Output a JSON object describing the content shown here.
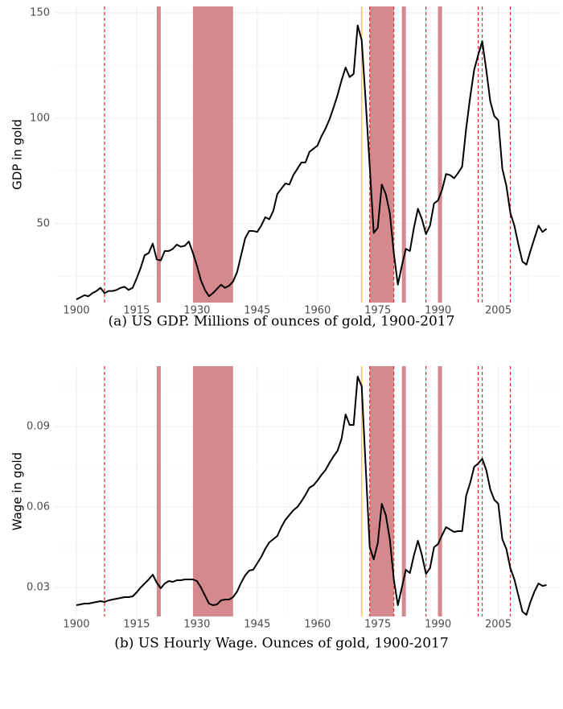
{
  "chart_data": [
    {
      "type": "line",
      "caption": "(a) US GDP. Millions of ounces of gold, 1900-2017",
      "y_label": "GDP in gold",
      "color": "#000000",
      "x": [
        1900,
        1901,
        1902,
        1903,
        1904,
        1905,
        1906,
        1907,
        1908,
        1909,
        1910,
        1911,
        1912,
        1913,
        1914,
        1915,
        1916,
        1917,
        1918,
        1919,
        1920,
        1921,
        1922,
        1923,
        1924,
        1925,
        1926,
        1927,
        1928,
        1929,
        1930,
        1931,
        1932,
        1933,
        1934,
        1935,
        1936,
        1937,
        1938,
        1939,
        1940,
        1941,
        1942,
        1943,
        1944,
        1945,
        1946,
        1947,
        1948,
        1949,
        1950,
        1951,
        1952,
        1953,
        1954,
        1955,
        1956,
        1957,
        1958,
        1959,
        1960,
        1961,
        1962,
        1963,
        1964,
        1965,
        1966,
        1967,
        1968,
        1969,
        1970,
        1971,
        1972,
        1973,
        1974,
        1975,
        1976,
        1977,
        1978,
        1979,
        1980,
        1981,
        1982,
        1983,
        1984,
        1985,
        1986,
        1987,
        1988,
        1989,
        1990,
        1991,
        1992,
        1993,
        1994,
        1995,
        1996,
        1997,
        1998,
        1999,
        2000,
        2001,
        2002,
        2003,
        2004,
        2005,
        2006,
        2007,
        2008,
        2009,
        2010,
        2011,
        2012,
        2013,
        2014,
        2015,
        2016,
        2017
      ],
      "values": [
        14,
        15,
        16,
        15.5,
        17,
        18,
        19.5,
        17,
        18,
        18,
        18.5,
        19.5,
        20,
        18.5,
        19.5,
        24,
        29,
        35,
        36,
        40.5,
        33,
        32.5,
        37,
        37,
        38,
        40,
        39,
        39.5,
        41.5,
        36,
        30,
        23,
        18.5,
        15.5,
        17,
        19,
        21,
        19.5,
        20.5,
        22.5,
        27,
        35,
        43,
        46.5,
        46.5,
        46,
        49,
        53,
        52,
        56,
        64,
        66.5,
        69,
        68.5,
        73,
        76,
        79,
        79,
        84,
        85.5,
        87,
        91.5,
        95,
        99.5,
        105,
        111,
        118,
        124,
        119.5,
        121,
        144,
        137,
        108,
        77,
        45.5,
        48,
        68.5,
        64,
        55,
        36,
        21,
        30,
        38,
        37,
        48,
        57,
        52,
        45,
        49,
        59.5,
        61,
        66,
        73.5,
        73,
        71.5,
        74,
        77,
        95,
        110,
        123,
        130,
        136.5,
        123,
        108,
        101,
        99,
        76,
        68,
        55,
        49,
        40,
        32,
        30.5,
        37,
        43,
        49,
        46,
        47.5
      ],
      "xlim": [
        1894.6,
        2020.5
      ],
      "xticks": [
        1900,
        1915,
        1930,
        1945,
        1960,
        1975,
        1990,
        2005
      ],
      "x_minor_ticks": [
        1907.5,
        1922.5,
        1937.5,
        1952.5,
        1967.5,
        1982.5,
        1997.5,
        2012.5
      ],
      "ylim": [
        12.5,
        153
      ],
      "yticks": [
        50,
        100,
        150
      ],
      "y_minor_ticks": [
        25,
        75,
        125
      ],
      "grid": true,
      "shaded_periods": [
        [
          1920,
          1921
        ],
        [
          1929,
          1939
        ],
        [
          1973,
          1979
        ],
        [
          1981,
          1982
        ],
        [
          1990,
          1991
        ]
      ],
      "shade_color": "#d48a8c",
      "dashed_lines": [
        1907,
        1973,
        1979,
        1987,
        2000,
        2001,
        2008
      ],
      "dashed_color": "#e8262d",
      "highlight_line": 1971,
      "highlight_color": "#f6c84c"
    },
    {
      "type": "line",
      "caption": "(b) US Hourly Wage. Ounces of gold, 1900-2017",
      "y_label": "Wage in gold",
      "color": "#000000",
      "x": [
        1900,
        1901,
        1902,
        1903,
        1904,
        1905,
        1906,
        1907,
        1908,
        1909,
        1910,
        1911,
        1912,
        1913,
        1914,
        1915,
        1916,
        1917,
        1918,
        1919,
        1920,
        1921,
        1922,
        1923,
        1924,
        1925,
        1926,
        1927,
        1928,
        1929,
        1930,
        1931,
        1932,
        1933,
        1934,
        1935,
        1936,
        1937,
        1938,
        1939,
        1940,
        1941,
        1942,
        1943,
        1944,
        1945,
        1946,
        1947,
        1948,
        1949,
        1950,
        1951,
        1952,
        1953,
        1954,
        1955,
        1956,
        1957,
        1958,
        1959,
        1960,
        1961,
        1962,
        1963,
        1964,
        1965,
        1966,
        1967,
        1968,
        1969,
        1970,
        1971,
        1972,
        1973,
        1974,
        1975,
        1976,
        1977,
        1978,
        1979,
        1980,
        1981,
        1982,
        1983,
        1984,
        1985,
        1986,
        1987,
        1988,
        1989,
        1990,
        1991,
        1992,
        1993,
        1994,
        1995,
        1996,
        1997,
        1998,
        1999,
        2000,
        2001,
        2002,
        2003,
        2004,
        2005,
        2006,
        2007,
        2008,
        2009,
        2010,
        2011,
        2012,
        2013,
        2014,
        2015,
        2016,
        2017
      ],
      "values": [
        0.0234,
        0.0237,
        0.024,
        0.024,
        0.0243,
        0.0246,
        0.0249,
        0.0246,
        0.0252,
        0.0255,
        0.0258,
        0.0261,
        0.0264,
        0.0264,
        0.0267,
        0.0282,
        0.03,
        0.0315,
        0.033,
        0.0348,
        0.0318,
        0.0297,
        0.0315,
        0.0324,
        0.0321,
        0.0327,
        0.0327,
        0.033,
        0.033,
        0.033,
        0.0324,
        0.03,
        0.027,
        0.024,
        0.0234,
        0.0237,
        0.0252,
        0.0255,
        0.0255,
        0.0264,
        0.0285,
        0.0318,
        0.0345,
        0.0363,
        0.0366,
        0.039,
        0.0414,
        0.0444,
        0.0468,
        0.048,
        0.0492,
        0.0525,
        0.0552,
        0.057,
        0.0588,
        0.06,
        0.0621,
        0.0645,
        0.0672,
        0.0681,
        0.0699,
        0.072,
        0.0738,
        0.0765,
        0.0789,
        0.081,
        0.0855,
        0.0945,
        0.0906,
        0.0906,
        0.1086,
        0.105,
        0.075,
        0.045,
        0.0405,
        0.0465,
        0.0612,
        0.057,
        0.048,
        0.033,
        0.0234,
        0.03,
        0.0366,
        0.0354,
        0.042,
        0.0474,
        0.042,
        0.0351,
        0.0372,
        0.045,
        0.0462,
        0.0495,
        0.0525,
        0.0516,
        0.0507,
        0.051,
        0.051,
        0.0642,
        0.069,
        0.075,
        0.0762,
        0.078,
        0.0738,
        0.0666,
        0.0627,
        0.0612,
        0.048,
        0.0444,
        0.0372,
        0.033,
        0.027,
        0.021,
        0.0198,
        0.0246,
        0.0285,
        0.0315,
        0.0306,
        0.0309
      ],
      "xlim": [
        1894.6,
        2020.5
      ],
      "xticks": [
        1900,
        1915,
        1930,
        1945,
        1960,
        1975,
        1990,
        2005
      ],
      "x_minor_ticks": [
        1907.5,
        1922.5,
        1937.5,
        1952.5,
        1967.5,
        1982.5,
        1997.5,
        2012.5
      ],
      "ylim": [
        0.0192,
        0.1125
      ],
      "yticks": [
        0.03,
        0.06,
        0.09
      ],
      "y_minor_ticks": [
        0.045,
        0.075,
        0.105
      ],
      "grid": true,
      "shaded_periods": [
        [
          1920,
          1921
        ],
        [
          1929,
          1939
        ],
        [
          1973,
          1979
        ],
        [
          1981,
          1982
        ],
        [
          1990,
          1991
        ]
      ],
      "shade_color": "#d48a8c",
      "dashed_lines": [
        1907,
        1973,
        1979,
        1987,
        2000,
        2001,
        2008
      ],
      "dashed_color": "#e8262d",
      "highlight_line": 1971,
      "highlight_color": "#f6c84c"
    }
  ]
}
